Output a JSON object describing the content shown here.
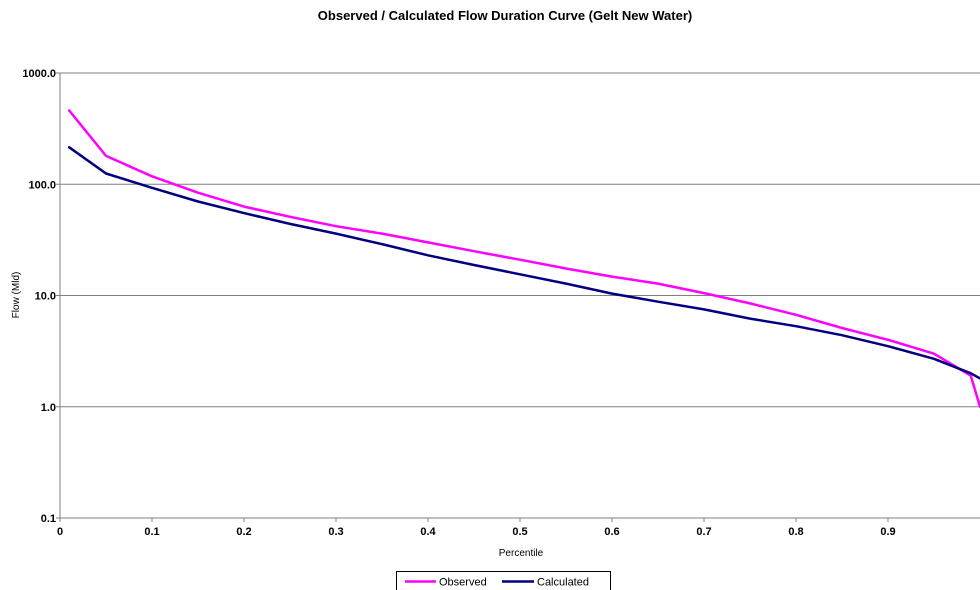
{
  "chart_data": {
    "type": "line",
    "title": "Observed  / Calculated  Flow Duration Curve (Gelt New Water)",
    "xlabel": "Percentile",
    "ylabel": "Flow (Mld)",
    "xlim": [
      0,
      1
    ],
    "ylim": [
      0.1,
      1000
    ],
    "yscale": "log",
    "grid": "horizontal",
    "legend_position": "bottom",
    "x_ticks": [
      0,
      0.1,
      0.2,
      0.3,
      0.4,
      0.5,
      0.6,
      0.7,
      0.8,
      0.9
    ],
    "x_tick_labels": [
      "0",
      "0.1",
      "0.2",
      "0.3",
      "0.4",
      "0.5",
      "0.6",
      "0.7",
      "0.8",
      "0.9"
    ],
    "y_ticks": [
      0.1,
      1,
      10,
      100,
      1000
    ],
    "y_tick_labels": [
      "0.1",
      "1.0",
      "10.0",
      "100.0",
      "1000.0"
    ],
    "series": [
      {
        "name": "Observed",
        "color": "#ff00ff",
        "x": [
          0.01,
          0.05,
          0.1,
          0.15,
          0.2,
          0.25,
          0.3,
          0.35,
          0.4,
          0.45,
          0.5,
          0.55,
          0.6,
          0.65,
          0.7,
          0.75,
          0.8,
          0.85,
          0.9,
          0.95,
          0.99,
          1.0
        ],
        "y": [
          460,
          180,
          118,
          84,
          63,
          51,
          42,
          36,
          30,
          25,
          21,
          17.5,
          14.8,
          12.8,
          10.5,
          8.5,
          6.7,
          5.1,
          4.0,
          3.0,
          1.9,
          1.0
        ]
      },
      {
        "name": "Calculated",
        "color": "#000080",
        "x": [
          0.01,
          0.05,
          0.1,
          0.15,
          0.2,
          0.25,
          0.3,
          0.35,
          0.4,
          0.45,
          0.5,
          0.55,
          0.6,
          0.65,
          0.7,
          0.75,
          0.8,
          0.85,
          0.9,
          0.95,
          0.99,
          1.0
        ],
        "y": [
          215,
          125,
          93,
          70,
          55,
          44,
          36,
          29,
          23,
          18.8,
          15.5,
          12.8,
          10.4,
          8.8,
          7.5,
          6.2,
          5.3,
          4.4,
          3.5,
          2.7,
          2.0,
          1.8
        ]
      }
    ]
  }
}
